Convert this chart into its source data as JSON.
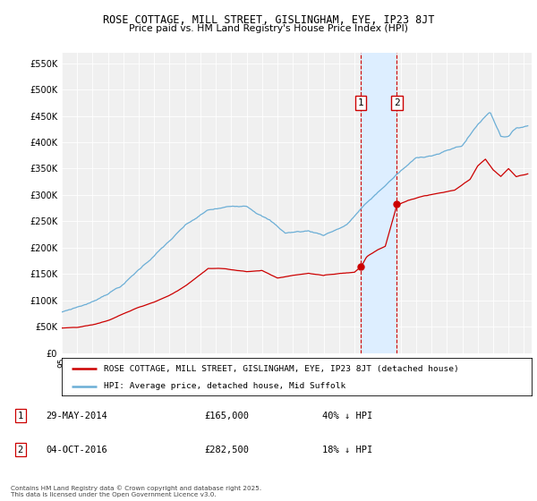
{
  "title": "ROSE COTTAGE, MILL STREET, GISLINGHAM, EYE, IP23 8JT",
  "subtitle": "Price paid vs. HM Land Registry's House Price Index (HPI)",
  "ylabel_ticks": [
    "£0",
    "£50K",
    "£100K",
    "£150K",
    "£200K",
    "£250K",
    "£300K",
    "£350K",
    "£400K",
    "£450K",
    "£500K",
    "£550K"
  ],
  "ytick_vals": [
    0,
    50000,
    100000,
    150000,
    200000,
    250000,
    300000,
    350000,
    400000,
    450000,
    500000,
    550000
  ],
  "ylim": [
    0,
    570000
  ],
  "xlim_start": 1995.0,
  "xlim_end": 2025.5,
  "legend_property": "ROSE COTTAGE, MILL STREET, GISLINGHAM, EYE, IP23 8JT (detached house)",
  "legend_hpi": "HPI: Average price, detached house, Mid Suffolk",
  "hpi_color": "#6baed6",
  "property_color": "#cc0000",
  "purchase1_date": 2014.41,
  "purchase1_price": 165000,
  "purchase2_date": 2016.75,
  "purchase2_price": 282500,
  "highlight_color": "#ddeeff",
  "vline_color": "#cc0000",
  "box_border_color": "#cc0000",
  "footnote_box_color": "#cc0000",
  "copyright": "Contains HM Land Registry data © Crown copyright and database right 2025.\nThis data is licensed under the Open Government Licence v3.0.",
  "background_color": "#f0f0f0"
}
